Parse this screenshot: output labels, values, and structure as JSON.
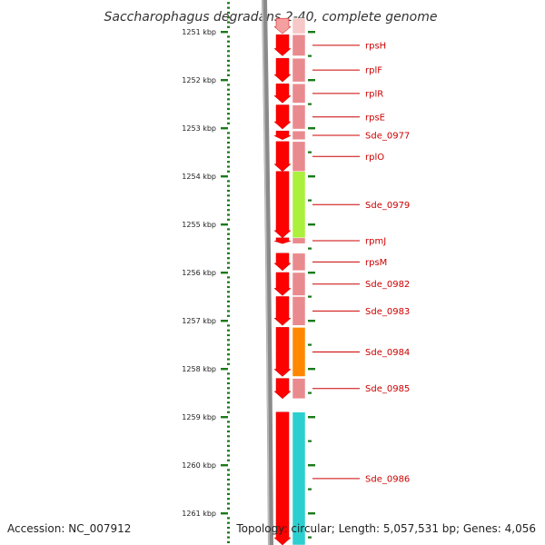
{
  "title": "Saccharophagus degradans 2-40, complete genome",
  "footer": {
    "accession": "Accession: NC_007912",
    "topology": "Topology: circular; Length: 5,057,531 bp; Genes: 4,056"
  },
  "colors": {
    "gene_red": "#ff0000",
    "label_red": "#cc0000",
    "track_pink": "#e98a8f",
    "green": "#aaf03c",
    "orange": "#ff8800",
    "cyan": "#2ccfcf",
    "tick_green": "#1a7a1a",
    "backbone_gray": "#808080"
  },
  "chart_data": {
    "type": "genome-map",
    "ruler": {
      "unit": "kbp",
      "ticks": [
        {
          "kbp": 1251,
          "label": "1251 kbp"
        },
        {
          "kbp": 1252,
          "label": "1252 kbp"
        },
        {
          "kbp": 1253,
          "label": "1253 kbp"
        },
        {
          "kbp": 1254,
          "label": "1254 kbp"
        },
        {
          "kbp": 1255,
          "label": "1255 kbp"
        },
        {
          "kbp": 1256,
          "label": "1256 kbp"
        },
        {
          "kbp": 1257,
          "label": "1257 kbp"
        },
        {
          "kbp": 1258,
          "label": "1258 kbp"
        },
        {
          "kbp": 1259,
          "label": "1259 kbp"
        },
        {
          "kbp": 1260,
          "label": "1260 kbp"
        },
        {
          "kbp": 1261,
          "label": "1261 kbp"
        }
      ]
    },
    "genes": [
      {
        "name": "",
        "start": 1250.72,
        "end": 1251.04,
        "color": "pink_light"
      },
      {
        "name": "rpsH",
        "start": 1251.06,
        "end": 1251.5,
        "color": "pink"
      },
      {
        "name": "rplF",
        "start": 1251.55,
        "end": 1252.04,
        "color": "pink"
      },
      {
        "name": "rplR",
        "start": 1252.08,
        "end": 1252.48,
        "color": "pink"
      },
      {
        "name": "rpsE",
        "start": 1252.52,
        "end": 1253.02,
        "color": "pink"
      },
      {
        "name": "Sde_0977",
        "start": 1253.06,
        "end": 1253.24,
        "color": "pink"
      },
      {
        "name": "rplO",
        "start": 1253.28,
        "end": 1253.9,
        "color": "pink"
      },
      {
        "name": "Sde_0979",
        "start": 1253.9,
        "end": 1255.28,
        "color": "green"
      },
      {
        "name": "rpmJ",
        "start": 1255.28,
        "end": 1255.4,
        "color": "pink"
      },
      {
        "name": "rpsM",
        "start": 1255.6,
        "end": 1255.96,
        "color": "pink"
      },
      {
        "name": "Sde_0982",
        "start": 1256.0,
        "end": 1256.48,
        "color": "pink"
      },
      {
        "name": "Sde_0983",
        "start": 1256.5,
        "end": 1257.1,
        "color": "pink"
      },
      {
        "name": "Sde_0984",
        "start": 1257.14,
        "end": 1258.16,
        "color": "orange"
      },
      {
        "name": "Sde_0985",
        "start": 1258.2,
        "end": 1258.62,
        "color": "pink"
      },
      {
        "name": "Sde_0986",
        "start": 1258.9,
        "end": 1261.7,
        "color": "cyan"
      }
    ]
  }
}
